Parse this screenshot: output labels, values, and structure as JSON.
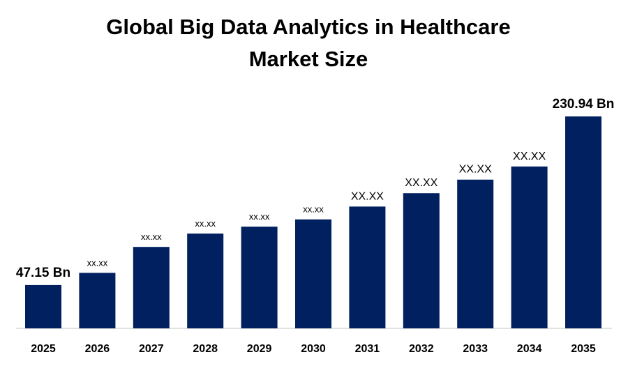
{
  "chart_data": {
    "type": "bar",
    "title_lines": [
      "Global Big Data Analytics in Healthcare",
      "Market Size"
    ],
    "xlabel": "",
    "ylabel": "",
    "categories": [
      "2025",
      "2026",
      "2027",
      "2028",
      "2029",
      "2030",
      "2031",
      "2032",
      "2033",
      "2034",
      "2035"
    ],
    "values": [
      47.15,
      60.5,
      88.7,
      103.3,
      110.8,
      118.7,
      132.7,
      147.2,
      162.0,
      176.4,
      230.94
    ],
    "data_labels": [
      "47.15 Bn",
      "xx.xx",
      "xx.xx",
      "xx.xx",
      "xx.xx",
      "xx.xx",
      "XX.XX",
      "XX.XX",
      "XX.XX",
      "XX.XX",
      "230.94 Bn"
    ],
    "ylim": [
      0,
      230.94
    ],
    "grid": false,
    "legend": "none",
    "bar_color": "#002060"
  }
}
